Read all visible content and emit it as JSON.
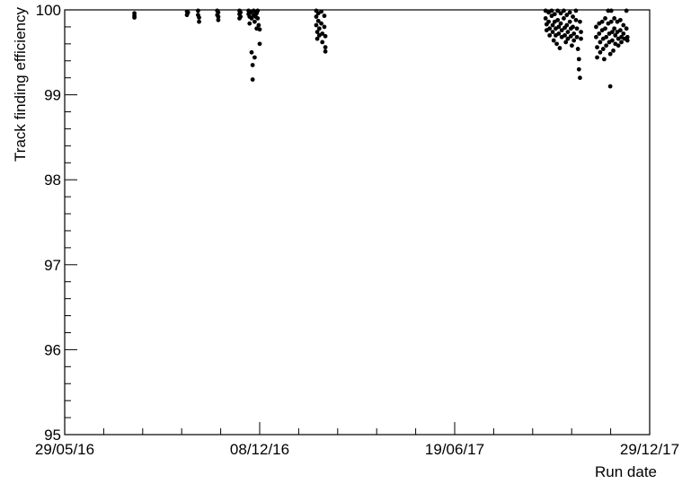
{
  "chart_data": {
    "type": "scatter",
    "title": "",
    "xlabel": "Run date",
    "ylabel": "Track finding efficiency",
    "x_axis": {
      "type": "date",
      "format": "DD/MM/YY",
      "range": [
        "2016-05-29",
        "2017-12-29"
      ],
      "tick_labels": [
        {
          "date": "2016-05-29",
          "label": "29/05/16"
        },
        {
          "date": "2016-12-08",
          "label": "08/12/16"
        },
        {
          "date": "2017-06-19",
          "label": "19/06/17"
        },
        {
          "date": "2017-12-29",
          "label": "29/12/17"
        }
      ]
    },
    "y_axis": {
      "range": [
        95,
        100
      ],
      "tick_labels": [
        "95",
        "96",
        "97",
        "98",
        "99",
        "100"
      ]
    },
    "grid": false,
    "legend": "none",
    "marker_color": "#000000",
    "points": [
      {
        "x": "2016-08-06",
        "y": 99.96
      },
      {
        "x": "2016-08-06",
        "y": 99.93
      },
      {
        "x": "2016-08-06",
        "y": 99.91
      },
      {
        "x": "2016-09-27",
        "y": 99.98
      },
      {
        "x": "2016-09-27",
        "y": 99.94
      },
      {
        "x": "2016-09-28",
        "y": 99.97
      },
      {
        "x": "2016-10-08",
        "y": 99.99
      },
      {
        "x": "2016-10-08",
        "y": 99.94
      },
      {
        "x": "2016-10-09",
        "y": 99.86
      },
      {
        "x": "2016-10-09",
        "y": 99.91
      },
      {
        "x": "2016-10-27",
        "y": 99.99
      },
      {
        "x": "2016-10-27",
        "y": 99.94
      },
      {
        "x": "2016-10-28",
        "y": 99.88
      },
      {
        "x": "2016-10-28",
        "y": 99.92
      },
      {
        "x": "2016-10-28",
        "y": 99.97
      },
      {
        "x": "2016-11-18",
        "y": 99.99
      },
      {
        "x": "2016-11-18",
        "y": 99.95
      },
      {
        "x": "2016-11-18",
        "y": 99.9
      },
      {
        "x": "2016-11-19",
        "y": 99.97
      },
      {
        "x": "2016-11-19",
        "y": 99.92
      },
      {
        "x": "2016-11-27",
        "y": 99.99
      },
      {
        "x": "2016-11-27",
        "y": 99.95
      },
      {
        "x": "2016-11-28",
        "y": 99.92
      },
      {
        "x": "2016-11-28",
        "y": 99.84
      },
      {
        "x": "2016-11-29",
        "y": 99.97
      },
      {
        "x": "2016-11-30",
        "y": 99.9
      },
      {
        "x": "2016-11-30",
        "y": 99.5
      },
      {
        "x": "2016-12-01",
        "y": 99.35
      },
      {
        "x": "2016-12-01",
        "y": 99.18
      },
      {
        "x": "2016-12-02",
        "y": 99.99
      },
      {
        "x": "2016-12-02",
        "y": 99.94
      },
      {
        "x": "2016-12-03",
        "y": 99.86
      },
      {
        "x": "2016-12-03",
        "y": 99.44
      },
      {
        "x": "2016-12-04",
        "y": 99.98
      },
      {
        "x": "2016-12-04",
        "y": 99.92
      },
      {
        "x": "2016-12-05",
        "y": 99.78
      },
      {
        "x": "2016-12-05",
        "y": 99.96
      },
      {
        "x": "2016-12-06",
        "y": 99.99
      },
      {
        "x": "2016-12-06",
        "y": 99.9
      },
      {
        "x": "2016-12-07",
        "y": 99.82
      },
      {
        "x": "2016-12-08",
        "y": 99.6
      },
      {
        "x": "2016-12-08",
        "y": 99.77
      },
      {
        "x": "2017-02-02",
        "y": 99.99
      },
      {
        "x": "2017-02-02",
        "y": 99.92
      },
      {
        "x": "2017-02-02",
        "y": 99.82
      },
      {
        "x": "2017-02-03",
        "y": 99.74
      },
      {
        "x": "2017-02-03",
        "y": 99.66
      },
      {
        "x": "2017-02-04",
        "y": 99.96
      },
      {
        "x": "2017-02-04",
        "y": 99.87
      },
      {
        "x": "2017-02-05",
        "y": 99.78
      },
      {
        "x": "2017-02-05",
        "y": 99.7
      },
      {
        "x": "2017-02-07",
        "y": 99.98
      },
      {
        "x": "2017-02-07",
        "y": 99.84
      },
      {
        "x": "2017-02-08",
        "y": 99.72
      },
      {
        "x": "2017-02-08",
        "y": 99.62
      },
      {
        "x": "2017-02-10",
        "y": 99.93
      },
      {
        "x": "2017-02-10",
        "y": 99.8
      },
      {
        "x": "2017-02-11",
        "y": 99.69
      },
      {
        "x": "2017-02-11",
        "y": 99.56
      },
      {
        "x": "2017-02-11",
        "y": 99.51
      },
      {
        "x": "2017-09-17",
        "y": 99.99
      },
      {
        "x": "2017-09-17",
        "y": 99.9
      },
      {
        "x": "2017-09-18",
        "y": 99.83
      },
      {
        "x": "2017-09-18",
        "y": 99.76
      },
      {
        "x": "2017-09-20",
        "y": 99.97
      },
      {
        "x": "2017-09-20",
        "y": 99.86
      },
      {
        "x": "2017-09-21",
        "y": 99.78
      },
      {
        "x": "2017-09-21",
        "y": 99.7
      },
      {
        "x": "2017-09-23",
        "y": 99.99
      },
      {
        "x": "2017-09-23",
        "y": 99.93
      },
      {
        "x": "2017-09-24",
        "y": 99.82
      },
      {
        "x": "2017-09-24",
        "y": 99.74
      },
      {
        "x": "2017-09-25",
        "y": 99.64
      },
      {
        "x": "2017-09-26",
        "y": 99.95
      },
      {
        "x": "2017-09-26",
        "y": 99.86
      },
      {
        "x": "2017-09-27",
        "y": 99.78
      },
      {
        "x": "2017-09-27",
        "y": 99.7
      },
      {
        "x": "2017-09-28",
        "y": 99.6
      },
      {
        "x": "2017-09-29",
        "y": 99.99
      },
      {
        "x": "2017-09-29",
        "y": 99.88
      },
      {
        "x": "2017-09-30",
        "y": 99.8
      },
      {
        "x": "2017-09-30",
        "y": 99.72
      },
      {
        "x": "2017-10-01",
        "y": 99.55
      },
      {
        "x": "2017-10-02",
        "y": 99.96
      },
      {
        "x": "2017-10-02",
        "y": 99.84
      },
      {
        "x": "2017-10-03",
        "y": 99.76
      },
      {
        "x": "2017-10-03",
        "y": 99.68
      },
      {
        "x": "2017-10-05",
        "y": 99.99
      },
      {
        "x": "2017-10-05",
        "y": 99.9
      },
      {
        "x": "2017-10-06",
        "y": 99.79
      },
      {
        "x": "2017-10-06",
        "y": 99.7
      },
      {
        "x": "2017-10-07",
        "y": 99.62
      },
      {
        "x": "2017-10-08",
        "y": 99.94
      },
      {
        "x": "2017-10-08",
        "y": 99.82
      },
      {
        "x": "2017-10-09",
        "y": 99.74
      },
      {
        "x": "2017-10-09",
        "y": 99.66
      },
      {
        "x": "2017-10-11",
        "y": 99.97
      },
      {
        "x": "2017-10-11",
        "y": 99.86
      },
      {
        "x": "2017-10-12",
        "y": 99.78
      },
      {
        "x": "2017-10-12",
        "y": 99.69
      },
      {
        "x": "2017-10-13",
        "y": 99.58
      },
      {
        "x": "2017-10-14",
        "y": 99.92
      },
      {
        "x": "2017-10-14",
        "y": 99.8
      },
      {
        "x": "2017-10-15",
        "y": 99.72
      },
      {
        "x": "2017-10-15",
        "y": 99.64
      },
      {
        "x": "2017-10-17",
        "y": 99.99
      },
      {
        "x": "2017-10-17",
        "y": 99.88
      },
      {
        "x": "2017-10-18",
        "y": 99.78
      },
      {
        "x": "2017-10-18",
        "y": 99.68
      },
      {
        "x": "2017-10-19",
        "y": 99.54
      },
      {
        "x": "2017-10-20",
        "y": 99.42
      },
      {
        "x": "2017-10-20",
        "y": 99.3
      },
      {
        "x": "2017-10-21",
        "y": 99.2
      },
      {
        "x": "2017-10-21",
        "y": 99.86
      },
      {
        "x": "2017-10-22",
        "y": 99.74
      },
      {
        "x": "2017-10-22",
        "y": 99.66
      },
      {
        "x": "2017-11-06",
        "y": 99.8
      },
      {
        "x": "2017-11-06",
        "y": 99.68
      },
      {
        "x": "2017-11-07",
        "y": 99.56
      },
      {
        "x": "2017-11-07",
        "y": 99.44
      },
      {
        "x": "2017-11-09",
        "y": 99.84
      },
      {
        "x": "2017-11-09",
        "y": 99.72
      },
      {
        "x": "2017-11-10",
        "y": 99.62
      },
      {
        "x": "2017-11-10",
        "y": 99.5
      },
      {
        "x": "2017-11-12",
        "y": 99.86
      },
      {
        "x": "2017-11-12",
        "y": 99.76
      },
      {
        "x": "2017-11-13",
        "y": 99.66
      },
      {
        "x": "2017-11-13",
        "y": 99.54
      },
      {
        "x": "2017-11-14",
        "y": 99.42
      },
      {
        "x": "2017-11-15",
        "y": 99.9
      },
      {
        "x": "2017-11-15",
        "y": 99.78
      },
      {
        "x": "2017-11-16",
        "y": 99.68
      },
      {
        "x": "2017-11-16",
        "y": 99.58
      },
      {
        "x": "2017-11-18",
        "y": 99.99
      },
      {
        "x": "2017-11-18",
        "y": 99.84
      },
      {
        "x": "2017-11-19",
        "y": 99.72
      },
      {
        "x": "2017-11-19",
        "y": 99.62
      },
      {
        "x": "2017-11-20",
        "y": 99.48
      },
      {
        "x": "2017-11-20",
        "y": 99.1
      },
      {
        "x": "2017-11-21",
        "y": 99.99
      },
      {
        "x": "2017-11-21",
        "y": 99.86
      },
      {
        "x": "2017-11-22",
        "y": 99.74
      },
      {
        "x": "2017-11-22",
        "y": 99.64
      },
      {
        "x": "2017-11-23",
        "y": 99.52
      },
      {
        "x": "2017-11-24",
        "y": 99.9
      },
      {
        "x": "2017-11-24",
        "y": 99.78
      },
      {
        "x": "2017-11-25",
        "y": 99.7
      },
      {
        "x": "2017-11-25",
        "y": 99.6
      },
      {
        "x": "2017-11-27",
        "y": 99.86
      },
      {
        "x": "2017-11-27",
        "y": 99.74
      },
      {
        "x": "2017-11-28",
        "y": 99.66
      },
      {
        "x": "2017-11-28",
        "y": 99.58
      },
      {
        "x": "2017-11-30",
        "y": 99.88
      },
      {
        "x": "2017-11-30",
        "y": 99.76
      },
      {
        "x": "2017-12-01",
        "y": 99.68
      },
      {
        "x": "2017-12-01",
        "y": 99.62
      },
      {
        "x": "2017-12-03",
        "y": 99.82
      },
      {
        "x": "2017-12-03",
        "y": 99.72
      },
      {
        "x": "2017-12-04",
        "y": 99.66
      },
      {
        "x": "2017-12-06",
        "y": 99.99
      },
      {
        "x": "2017-12-06",
        "y": 99.78
      },
      {
        "x": "2017-12-07",
        "y": 99.68
      },
      {
        "x": "2017-12-07",
        "y": 99.64
      }
    ]
  }
}
